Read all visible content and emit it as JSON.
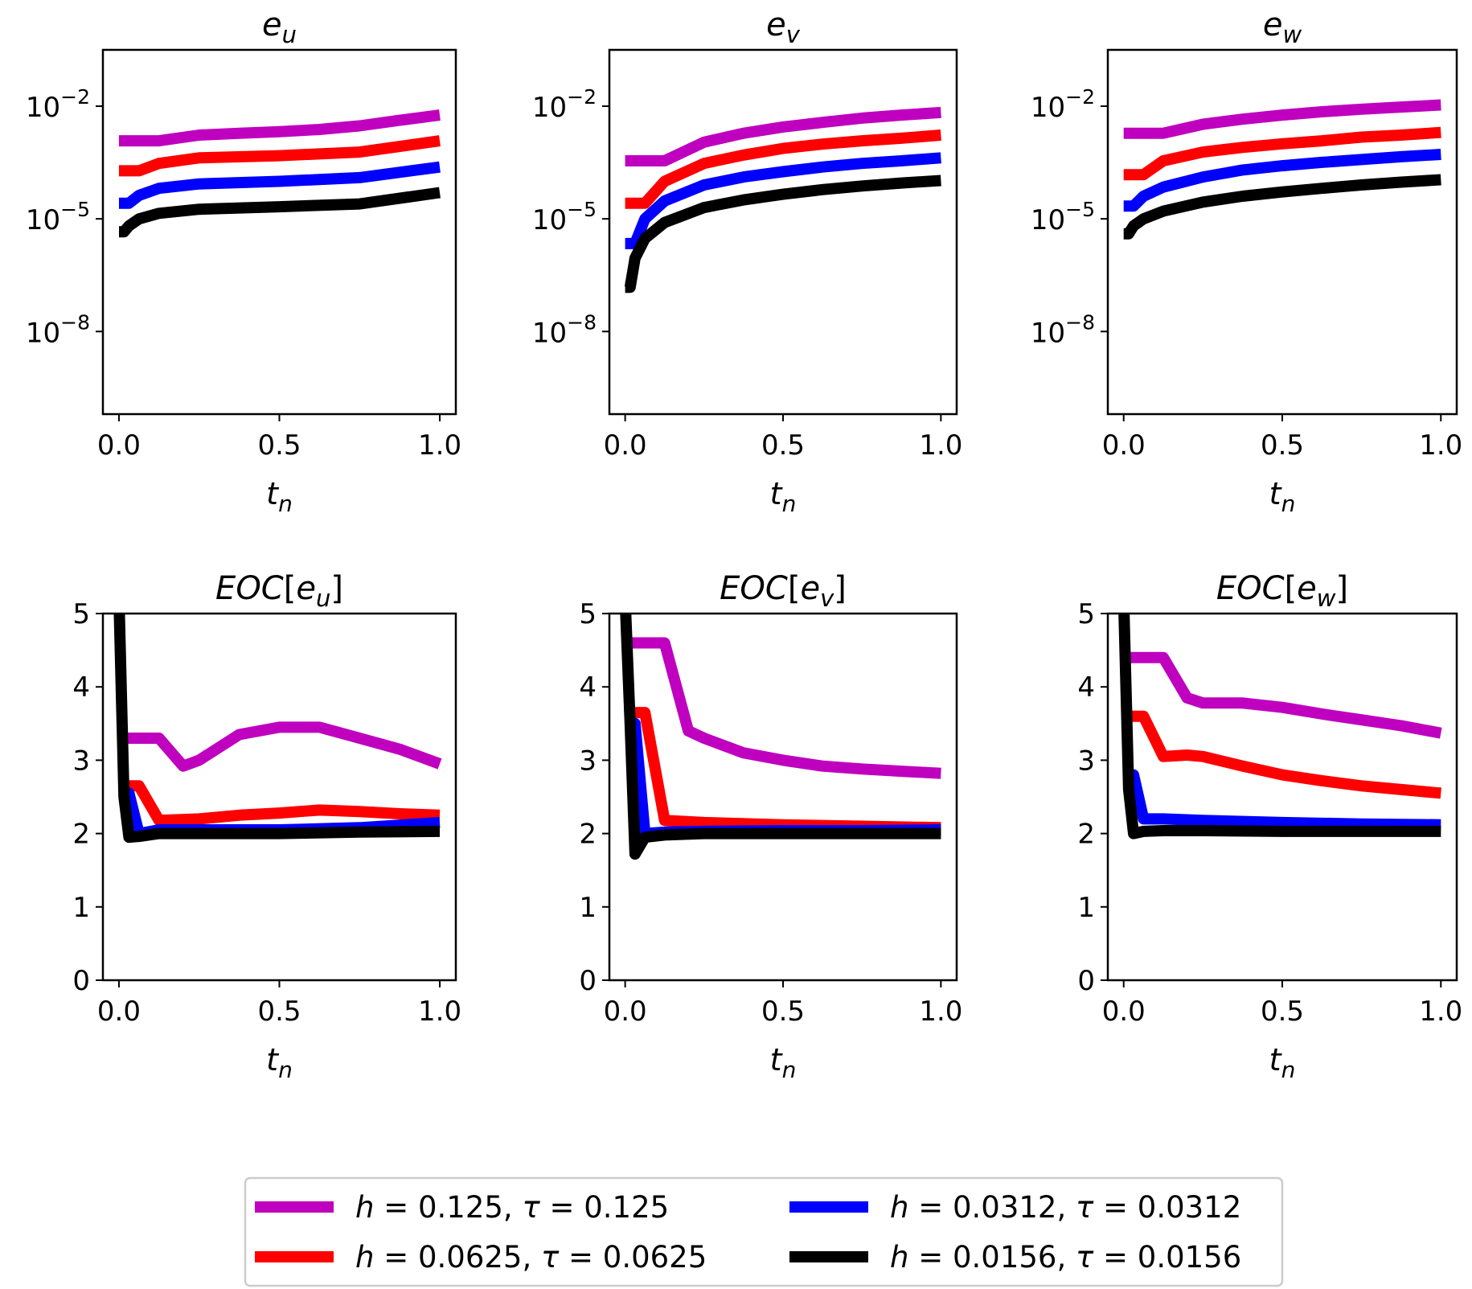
{
  "legend": {
    "entries": [
      {
        "label": "h = 0.125, τ = 0.125",
        "color": "#bf00bf"
      },
      {
        "label": "h = 0.0625, τ = 0.0625",
        "color": "#ff0000"
      },
      {
        "label": "h = 0.0312, τ = 0.0312",
        "color": "#0000ff"
      },
      {
        "label": "h = 0.0156, τ = 0.0156",
        "color": "#000000"
      }
    ]
  },
  "chart_data": [
    {
      "type": "line",
      "title": "e_u",
      "xlabel": "t_n",
      "yscale": "log",
      "xlim": [
        -0.05,
        1.05
      ],
      "ylim_exp": [
        -10.2,
        -0.5
      ],
      "xticks": [
        "0.0",
        "0.5",
        "1.0"
      ],
      "yticks_exp": [
        -2,
        -5,
        -8
      ],
      "series": [
        {
          "name": "h = 0.125, τ = 0.125",
          "color": "#bf00bf",
          "x": [
            0,
            0.125,
            0.25,
            0.375,
            0.5,
            0.625,
            0.75,
            0.875,
            1.0
          ],
          "y": [
            0.0012,
            0.0012,
            0.0017,
            0.0019,
            0.0021,
            0.0024,
            0.003,
            0.0042,
            0.0058
          ]
        },
        {
          "name": "h = 0.0625, τ = 0.0625",
          "color": "#ff0000",
          "x": [
            0,
            0.0625,
            0.125,
            0.25,
            0.5,
            0.75,
            1.0
          ],
          "y": [
            0.00019,
            0.00019,
            0.0003,
            0.00042,
            0.00048,
            0.0006,
            0.0012
          ]
        },
        {
          "name": "h = 0.0312, τ = 0.0312",
          "color": "#0000ff",
          "x": [
            0,
            0.0312,
            0.0625,
            0.125,
            0.25,
            0.5,
            0.75,
            1.0
          ],
          "y": [
            2.6e-05,
            2.6e-05,
            4.2e-05,
            6.5e-05,
            8.5e-05,
            0.0001,
            0.000125,
            0.00024
          ]
        },
        {
          "name": "h = 0.0156, τ = 0.0156",
          "color": "#000000",
          "x": [
            0,
            0.0156,
            0.0312,
            0.0625,
            0.125,
            0.25,
            0.5,
            0.75,
            1.0
          ],
          "y": [
            4.5e-06,
            4.5e-06,
            6.5e-06,
            1e-05,
            1.4e-05,
            1.8e-05,
            2.1e-05,
            2.5e-05,
            5e-05
          ]
        }
      ]
    },
    {
      "type": "line",
      "title": "e_v",
      "xlabel": "t_n",
      "yscale": "log",
      "xlim": [
        -0.05,
        1.05
      ],
      "ylim_exp": [
        -10.2,
        -0.5
      ],
      "xticks": [
        "0.0",
        "0.5",
        "1.0"
      ],
      "yticks_exp": [
        -2,
        -5,
        -8
      ],
      "series": [
        {
          "name": "h = 0.125, τ = 0.125",
          "color": "#bf00bf",
          "x": [
            0,
            0.125,
            0.25,
            0.375,
            0.5,
            0.625,
            0.75,
            0.875,
            1.0
          ],
          "y": [
            0.00035,
            0.00035,
            0.0011,
            0.0019,
            0.0028,
            0.0037,
            0.0048,
            0.0058,
            0.0068
          ]
        },
        {
          "name": "h = 0.0625, τ = 0.0625",
          "color": "#ff0000",
          "x": [
            0,
            0.0625,
            0.125,
            0.25,
            0.375,
            0.5,
            0.625,
            0.75,
            0.875,
            1.0
          ],
          "y": [
            2.6e-05,
            2.6e-05,
            0.0001,
            0.0003,
            0.0005,
            0.00075,
            0.00098,
            0.0012,
            0.0014,
            0.0017
          ]
        },
        {
          "name": "h = 0.0312, τ = 0.0312",
          "color": "#0000ff",
          "x": [
            0,
            0.0312,
            0.0625,
            0.125,
            0.25,
            0.375,
            0.5,
            0.625,
            0.75,
            0.875,
            1.0
          ],
          "y": [
            2.2e-06,
            2.2e-06,
            1e-05,
            3e-05,
            8e-05,
            0.00013,
            0.00018,
            0.00024,
            0.0003,
            0.00035,
            0.00042
          ]
        },
        {
          "name": "h = 0.0156, τ = 0.0156",
          "color": "#000000",
          "x": [
            0,
            0.0156,
            0.0312,
            0.0625,
            0.125,
            0.25,
            0.375,
            0.5,
            0.625,
            0.75,
            0.875,
            1.0
          ],
          "y": [
            1.5e-07,
            1.5e-07,
            9e-07,
            3e-06,
            8e-06,
            2e-05,
            3.2e-05,
            4.5e-05,
            6e-05,
            7.5e-05,
            9e-05,
            0.000105
          ]
        }
      ]
    },
    {
      "type": "line",
      "title": "e_w",
      "xlabel": "t_n",
      "yscale": "log",
      "xlim": [
        -0.05,
        1.05
      ],
      "ylim_exp": [
        -10.2,
        -0.5
      ],
      "xticks": [
        "0.0",
        "0.5",
        "1.0"
      ],
      "yticks_exp": [
        -2,
        -5,
        -8
      ],
      "series": [
        {
          "name": "h = 0.125, τ = 0.125",
          "color": "#bf00bf",
          "x": [
            0,
            0.125,
            0.25,
            0.375,
            0.5,
            0.625,
            0.75,
            0.875,
            1.0
          ],
          "y": [
            0.0019,
            0.0019,
            0.0033,
            0.0045,
            0.0058,
            0.0071,
            0.0083,
            0.0095,
            0.0108
          ]
        },
        {
          "name": "h = 0.0625, τ = 0.0625",
          "color": "#ff0000",
          "x": [
            0,
            0.0625,
            0.125,
            0.25,
            0.375,
            0.5,
            0.625,
            0.75,
            0.875,
            1.0
          ],
          "y": [
            0.00015,
            0.00015,
            0.00035,
            0.0006,
            0.0008,
            0.001,
            0.0012,
            0.0015,
            0.0017,
            0.002
          ]
        },
        {
          "name": "h = 0.0312, τ = 0.0312",
          "color": "#0000ff",
          "x": [
            0,
            0.0312,
            0.0625,
            0.125,
            0.25,
            0.375,
            0.5,
            0.625,
            0.75,
            0.875,
            1.0
          ],
          "y": [
            2.2e-05,
            2.2e-05,
            4e-05,
            7e-05,
            0.00013,
            0.0002,
            0.00026,
            0.00032,
            0.00038,
            0.00045,
            0.00052
          ]
        },
        {
          "name": "h = 0.0156, τ = 0.0156",
          "color": "#000000",
          "x": [
            0,
            0.0156,
            0.0312,
            0.0625,
            0.125,
            0.25,
            0.375,
            0.5,
            0.625,
            0.75,
            0.875,
            1.0
          ],
          "y": [
            4e-06,
            4e-06,
            6.5e-06,
            1e-05,
            1.6e-05,
            2.8e-05,
            4e-05,
            5.2e-05,
            6.5e-05,
            8e-05,
            9.5e-05,
            0.00011
          ]
        }
      ]
    },
    {
      "type": "line",
      "title": "EOC[e_u]",
      "xlabel": "t_n",
      "yscale": "linear",
      "xlim": [
        -0.05,
        1.05
      ],
      "ylim": [
        0,
        5
      ],
      "xticks": [
        "0.0",
        "0.5",
        "1.0"
      ],
      "yticks": [
        0,
        1,
        2,
        3,
        4,
        5
      ],
      "series": [
        {
          "name": "h = 0.125, τ = 0.125",
          "color": "#bf00bf",
          "x": [
            0,
            0.125,
            0.2,
            0.25,
            0.375,
            0.5,
            0.625,
            0.75,
            0.875,
            1.0
          ],
          "y": [
            3.3,
            3.3,
            2.92,
            3.0,
            3.35,
            3.45,
            3.45,
            3.3,
            3.15,
            2.95
          ]
        },
        {
          "name": "h = 0.0625, τ = 0.0625",
          "color": "#ff0000",
          "x": [
            0,
            0.0625,
            0.125,
            0.25,
            0.375,
            0.5,
            0.625,
            0.75,
            0.875,
            1.0
          ],
          "y": [
            2.65,
            2.65,
            2.18,
            2.2,
            2.25,
            2.28,
            2.32,
            2.3,
            2.27,
            2.25
          ]
        },
        {
          "name": "h = 0.0312, τ = 0.0312",
          "color": "#0000ff",
          "x": [
            0,
            0.0312,
            0.0625,
            0.125,
            0.25,
            0.5,
            0.75,
            1.0
          ],
          "y": [
            2.55,
            2.55,
            2.0,
            2.05,
            2.05,
            2.05,
            2.08,
            2.15
          ]
        },
        {
          "name": "h = 0.0156, τ = 0.0156",
          "color": "#000000",
          "x": [
            0,
            0.0156,
            0.0312,
            0.0625,
            0.125,
            0.25,
            0.5,
            0.75,
            1.0
          ],
          "y": [
            5.2,
            2.5,
            1.95,
            1.96,
            2.0,
            2.0,
            2.0,
            2.02,
            2.03
          ]
        }
      ]
    },
    {
      "type": "line",
      "title": "EOC[e_v]",
      "xlabel": "t_n",
      "yscale": "linear",
      "xlim": [
        -0.05,
        1.05
      ],
      "ylim": [
        0,
        5
      ],
      "xticks": [
        "0.0",
        "0.5",
        "1.0"
      ],
      "yticks": [
        0,
        1,
        2,
        3,
        4,
        5
      ],
      "series": [
        {
          "name": "h = 0.125, τ = 0.125",
          "color": "#bf00bf",
          "x": [
            0,
            0.125,
            0.2,
            0.25,
            0.375,
            0.5,
            0.625,
            0.75,
            0.875,
            1.0
          ],
          "y": [
            4.6,
            4.6,
            3.4,
            3.3,
            3.1,
            3.0,
            2.92,
            2.88,
            2.85,
            2.82
          ]
        },
        {
          "name": "h = 0.0625, τ = 0.0625",
          "color": "#ff0000",
          "x": [
            0,
            0.0625,
            0.125,
            0.25,
            0.5,
            0.75,
            1.0
          ],
          "y": [
            3.65,
            3.65,
            2.18,
            2.15,
            2.12,
            2.1,
            2.08
          ]
        },
        {
          "name": "h = 0.0312, τ = 0.0312",
          "color": "#0000ff",
          "x": [
            0,
            0.0312,
            0.0625,
            0.125,
            0.25,
            0.5,
            0.75,
            1.0
          ],
          "y": [
            3.5,
            3.5,
            2.0,
            2.02,
            2.03,
            2.04,
            2.04,
            2.05
          ]
        },
        {
          "name": "h = 0.0156, τ = 0.0156",
          "color": "#000000",
          "x": [
            0,
            0.0156,
            0.0312,
            0.0625,
            0.125,
            0.25,
            0.5,
            0.75,
            1.0
          ],
          "y": [
            5.2,
            3.5,
            1.72,
            1.95,
            1.98,
            2.0,
            2.0,
            2.0,
            2.0
          ]
        }
      ]
    },
    {
      "type": "line",
      "title": "EOC[e_w]",
      "xlabel": "t_n",
      "yscale": "linear",
      "xlim": [
        -0.05,
        1.05
      ],
      "ylim": [
        0,
        5
      ],
      "xticks": [
        "0.0",
        "0.5",
        "1.0"
      ],
      "yticks": [
        0,
        1,
        2,
        3,
        4,
        5
      ],
      "series": [
        {
          "name": "h = 0.125, τ = 0.125",
          "color": "#bf00bf",
          "x": [
            0,
            0.125,
            0.2,
            0.25,
            0.375,
            0.5,
            0.625,
            0.75,
            0.875,
            1.0
          ],
          "y": [
            4.4,
            4.4,
            3.85,
            3.78,
            3.78,
            3.72,
            3.63,
            3.55,
            3.47,
            3.37
          ]
        },
        {
          "name": "h = 0.0625, τ = 0.0625",
          "color": "#ff0000",
          "x": [
            0,
            0.0625,
            0.125,
            0.2,
            0.25,
            0.375,
            0.5,
            0.625,
            0.75,
            0.875,
            1.0
          ],
          "y": [
            3.6,
            3.6,
            3.05,
            3.07,
            3.05,
            2.92,
            2.8,
            2.72,
            2.65,
            2.6,
            2.55
          ]
        },
        {
          "name": "h = 0.0312, τ = 0.0312",
          "color": "#0000ff",
          "x": [
            0,
            0.0312,
            0.0625,
            0.125,
            0.25,
            0.5,
            0.75,
            1.0
          ],
          "y": [
            2.8,
            2.8,
            2.2,
            2.2,
            2.18,
            2.15,
            2.13,
            2.12
          ]
        },
        {
          "name": "h = 0.0156, τ = 0.0156",
          "color": "#000000",
          "x": [
            0,
            0.0156,
            0.0312,
            0.0625,
            0.125,
            0.25,
            0.5,
            0.75,
            1.0
          ],
          "y": [
            5.2,
            2.6,
            2.0,
            2.03,
            2.04,
            2.04,
            2.03,
            2.03,
            2.03
          ]
        }
      ]
    }
  ]
}
